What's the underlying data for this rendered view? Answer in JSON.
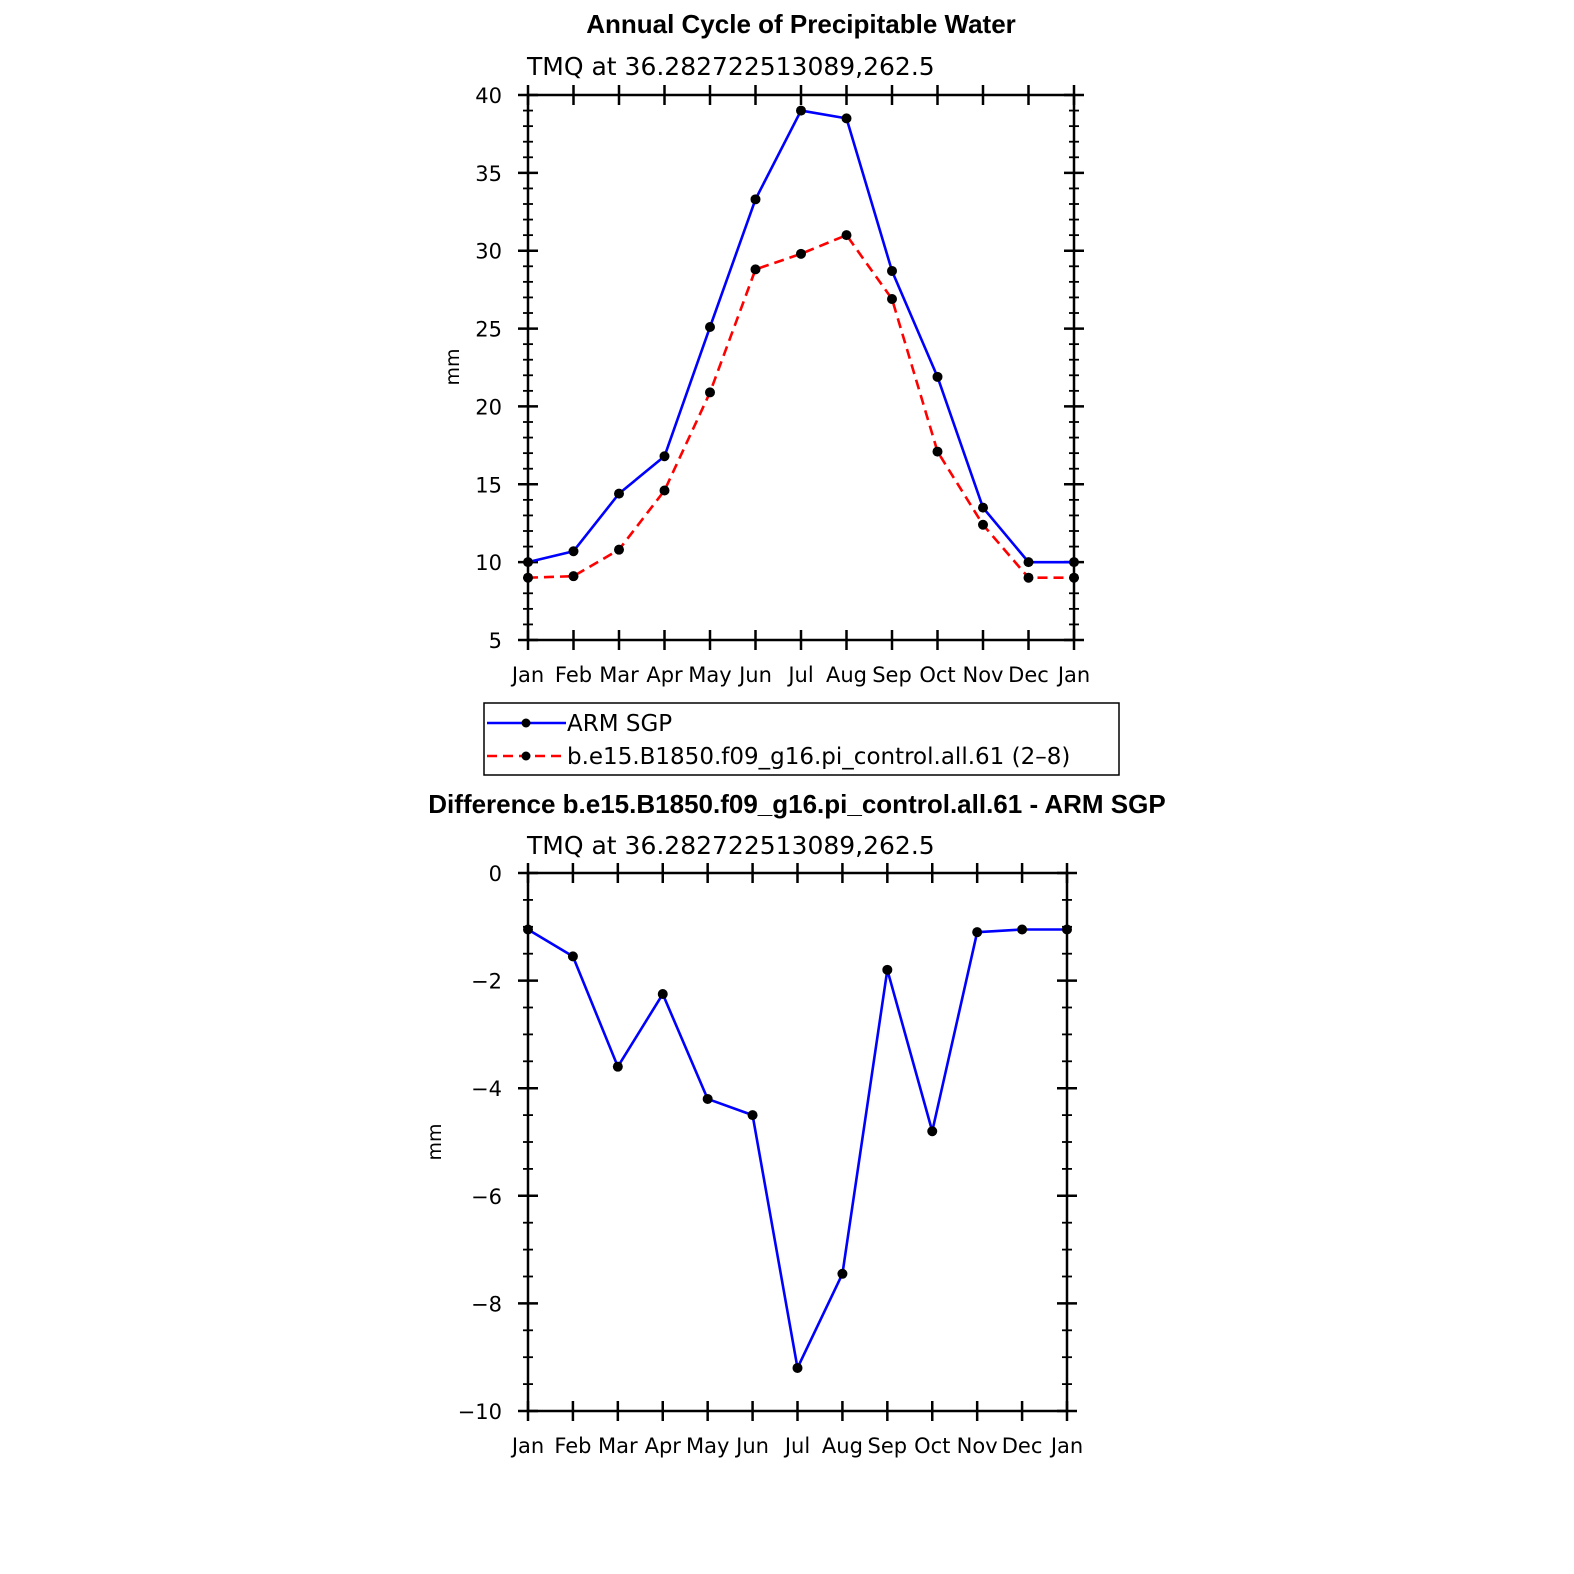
{
  "chart_data": [
    {
      "type": "line",
      "title": "Annual Cycle of Precipitable Water",
      "subtitle": "TMQ at 36.282722513089,262.5",
      "ylabel": "mm",
      "ylim": [
        5,
        40
      ],
      "yticks": [
        "5",
        "10",
        "15",
        "20",
        "25",
        "30",
        "35",
        "40"
      ],
      "categories": [
        "Jan",
        "Feb",
        "Mar",
        "Apr",
        "May",
        "Jun",
        "Jul",
        "Aug",
        "Sep",
        "Oct",
        "Nov",
        "Dec",
        "Jan"
      ],
      "series": [
        {
          "name": "ARM SGP",
          "color": "#0000ff",
          "style": "solid",
          "values": [
            10.0,
            10.7,
            14.4,
            16.8,
            25.1,
            33.3,
            39.0,
            38.5,
            28.7,
            21.9,
            13.5,
            10.0,
            10.0
          ]
        },
        {
          "name": "b.e15.B1850.f09_g16.pi_control.all.61 (2–8)",
          "color": "#ff0000",
          "style": "dashed",
          "values": [
            9.0,
            9.1,
            10.8,
            14.6,
            20.9,
            28.8,
            29.8,
            31.0,
            26.9,
            17.1,
            12.4,
            9.0,
            9.0
          ]
        }
      ],
      "legend_position": "below"
    },
    {
      "type": "line",
      "title": "Difference b.e15.B1850.f09_g16.pi_control.all.61 - ARM SGP",
      "subtitle": "TMQ at 36.282722513089,262.5",
      "ylabel": "mm",
      "ylim": [
        -10,
        0
      ],
      "yticks": [
        "−10",
        "−8",
        "−6",
        "−4",
        "−2",
        "0"
      ],
      "categories": [
        "Jan",
        "Feb",
        "Mar",
        "Apr",
        "May",
        "Jun",
        "Jul",
        "Aug",
        "Sep",
        "Oct",
        "Nov",
        "Dec",
        "Jan"
      ],
      "series": [
        {
          "color": "#0000ff",
          "style": "solid",
          "values": [
            -1.05,
            -1.55,
            -3.6,
            -2.25,
            -4.2,
            -4.5,
            -9.2,
            -7.45,
            -1.8,
            -4.8,
            -1.1,
            -1.05,
            -1.05
          ]
        }
      ]
    }
  ]
}
